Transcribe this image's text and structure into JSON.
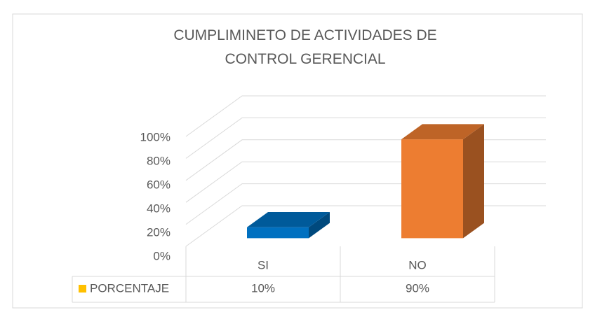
{
  "chart_data": {
    "type": "bar3d",
    "title": "CUMPLIMINETO DE ACTIVIDADES DE CONTROL GERENCIAL",
    "categories": [
      "SI",
      "NO"
    ],
    "series": [
      {
        "name": "PORCENTAJE",
        "color": "#ffc000",
        "values": [
          10,
          90
        ],
        "value_labels": [
          "10%",
          "90%"
        ]
      }
    ],
    "point_colors": [
      "#0070c0",
      "#ed7d31"
    ],
    "ylim": [
      0,
      100
    ],
    "yticks": [
      {
        "value": 0,
        "label": "0%"
      },
      {
        "value": 20,
        "label": "20%"
      },
      {
        "value": 40,
        "label": "40%"
      },
      {
        "value": 60,
        "label": "60%"
      },
      {
        "value": 80,
        "label": "80%"
      },
      {
        "value": 100,
        "label": "100%"
      }
    ],
    "grid": true,
    "data_table": true
  }
}
